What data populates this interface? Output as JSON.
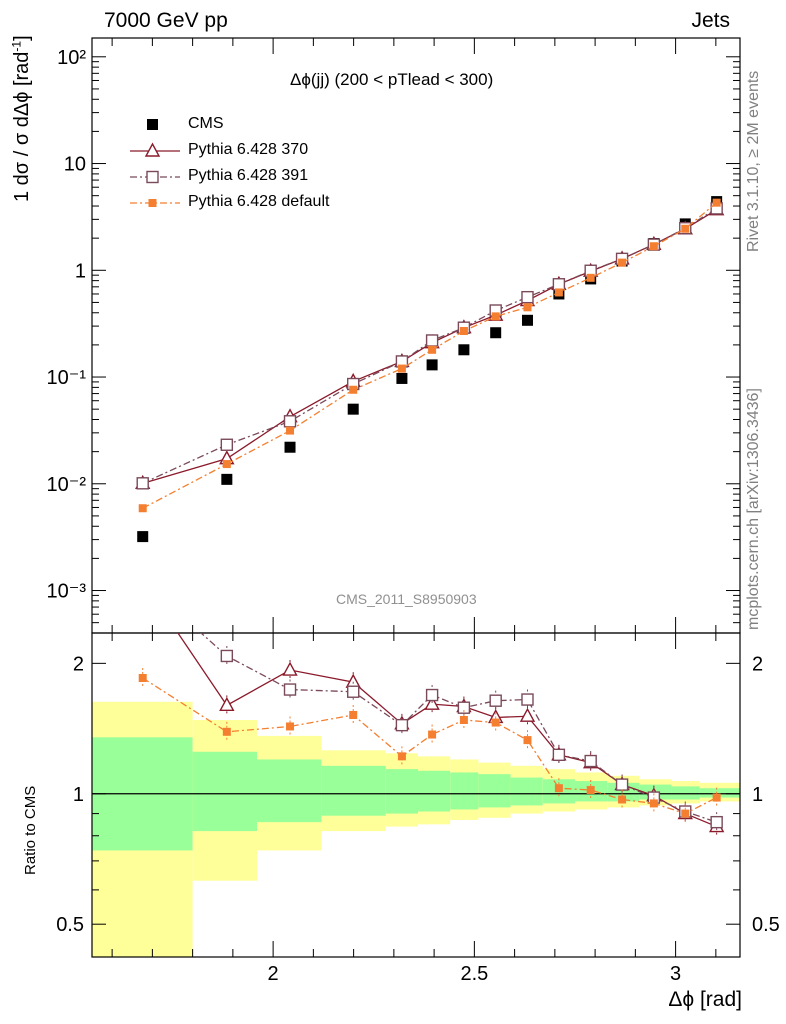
{
  "header": {
    "left": "7000 GeV pp",
    "right": "Jets"
  },
  "side_labels": {
    "rivet": "Rivet 3.1.10, ≥ 2M events",
    "mcplots": "mcplots.cern.ch [arXiv:1306.3436]"
  },
  "plot_title": "Δϕ(jj) (200 < pTlead <  300)",
  "analysis_tag": "CMS_2011_S8950903",
  "colors": {
    "cms": "#000000",
    "p370": "#8b1a2b",
    "p391": "#7a4a5a",
    "pdef": "#f47f30",
    "band_inner": "#99ff99",
    "band_outer": "#ffff99"
  },
  "chart_data": [
    {
      "type": "scatter",
      "title": "Δϕ(jj) (200 < pTlead <  300)",
      "xlabel": "Δϕ [rad]",
      "ylabel": "1/σ dσ/dΔϕ [rad⁻¹]",
      "yscale": "log",
      "xlim": [
        1.55,
        3.16
      ],
      "ylim": [
        0.0004,
        150
      ],
      "ytick_labels": [
        "10⁻³",
        "10⁻²",
        "10⁻¹",
        "1",
        "10",
        "10²"
      ],
      "legend": "top-left",
      "x": [
        1.676,
        1.885,
        2.042,
        2.199,
        2.32,
        2.395,
        2.474,
        2.553,
        2.632,
        2.71,
        2.789,
        2.867,
        2.946,
        3.024,
        3.102
      ],
      "series": [
        {
          "name": "CMS",
          "values": [
            0.0032,
            0.011,
            0.022,
            0.05,
            0.097,
            0.13,
            0.18,
            0.26,
            0.34,
            0.6,
            0.83,
            1.22,
            1.78,
            2.72,
            4.4
          ]
        },
        {
          "name": "Pythia 6.428 370",
          "values": [
            0.0101,
            0.0172,
            0.0425,
            0.091,
            0.14,
            0.21,
            0.29,
            0.38,
            0.52,
            0.74,
            0.98,
            1.28,
            1.75,
            2.45,
            3.7
          ]
        },
        {
          "name": "Pythia 6.428 391",
          "values": [
            0.0101,
            0.0232,
            0.0385,
            0.086,
            0.14,
            0.22,
            0.29,
            0.42,
            0.56,
            0.74,
            0.99,
            1.28,
            1.74,
            2.48,
            3.8
          ]
        },
        {
          "name": "Pythia 6.428 default",
          "values": [
            0.0059,
            0.0153,
            0.0315,
            0.076,
            0.12,
            0.18,
            0.27,
            0.37,
            0.45,
            0.62,
            0.85,
            1.18,
            1.68,
            2.45,
            4.3
          ]
        }
      ]
    },
    {
      "type": "line",
      "xlabel": "Δϕ [rad]",
      "ylabel": "Ratio to CMS",
      "xlim": [
        1.55,
        3.16
      ],
      "ylim": [
        0.42,
        2.35
      ],
      "xtick_labels": [
        "2",
        "2.5",
        "3"
      ],
      "ytick_labels": [
        "0.5",
        "1",
        "2"
      ],
      "x": [
        1.676,
        1.885,
        2.042,
        2.199,
        2.32,
        2.395,
        2.474,
        2.553,
        2.632,
        2.71,
        2.789,
        2.867,
        2.946,
        3.024,
        3.102
      ],
      "series": [
        {
          "name": "Pythia 6.428 370",
          "values": [
            3.1,
            1.6,
            1.93,
            1.81,
            1.45,
            1.61,
            1.59,
            1.5,
            1.51,
            1.23,
            1.18,
            1.05,
            0.99,
            0.9,
            0.84
          ]
        },
        {
          "name": "Pythia 6.428 391",
          "values": [
            3.1,
            2.08,
            1.74,
            1.72,
            1.44,
            1.69,
            1.58,
            1.64,
            1.65,
            1.23,
            1.19,
            1.05,
            0.98,
            0.91,
            0.86
          ]
        },
        {
          "name": "Pythia 6.428 default",
          "values": [
            1.85,
            1.39,
            1.43,
            1.52,
            1.22,
            1.37,
            1.48,
            1.46,
            1.33,
            1.03,
            1.02,
            0.97,
            0.95,
            0.9,
            0.98
          ]
        }
      ],
      "bands": {
        "edges": [
          1.55,
          1.8,
          1.96,
          2.12,
          2.28,
          2.36,
          2.44,
          2.51,
          2.59,
          2.67,
          2.75,
          2.83,
          2.91,
          2.99,
          3.06,
          3.16
        ],
        "inner_lo": [
          0.74,
          0.82,
          0.86,
          0.89,
          0.9,
          0.91,
          0.92,
          0.93,
          0.94,
          0.95,
          0.96,
          0.96,
          0.97,
          0.97,
          0.98
        ],
        "inner_hi": [
          1.35,
          1.25,
          1.2,
          1.16,
          1.14,
          1.13,
          1.12,
          1.11,
          1.09,
          1.08,
          1.07,
          1.06,
          1.05,
          1.04,
          1.03
        ],
        "outer_lo": [
          0.3,
          0.63,
          0.74,
          0.82,
          0.84,
          0.85,
          0.87,
          0.88,
          0.9,
          0.91,
          0.92,
          0.93,
          0.94,
          0.95,
          0.96
        ],
        "outer_hi": [
          1.63,
          1.48,
          1.36,
          1.26,
          1.24,
          1.22,
          1.2,
          1.18,
          1.16,
          1.14,
          1.12,
          1.1,
          1.08,
          1.07,
          1.06
        ]
      }
    }
  ]
}
